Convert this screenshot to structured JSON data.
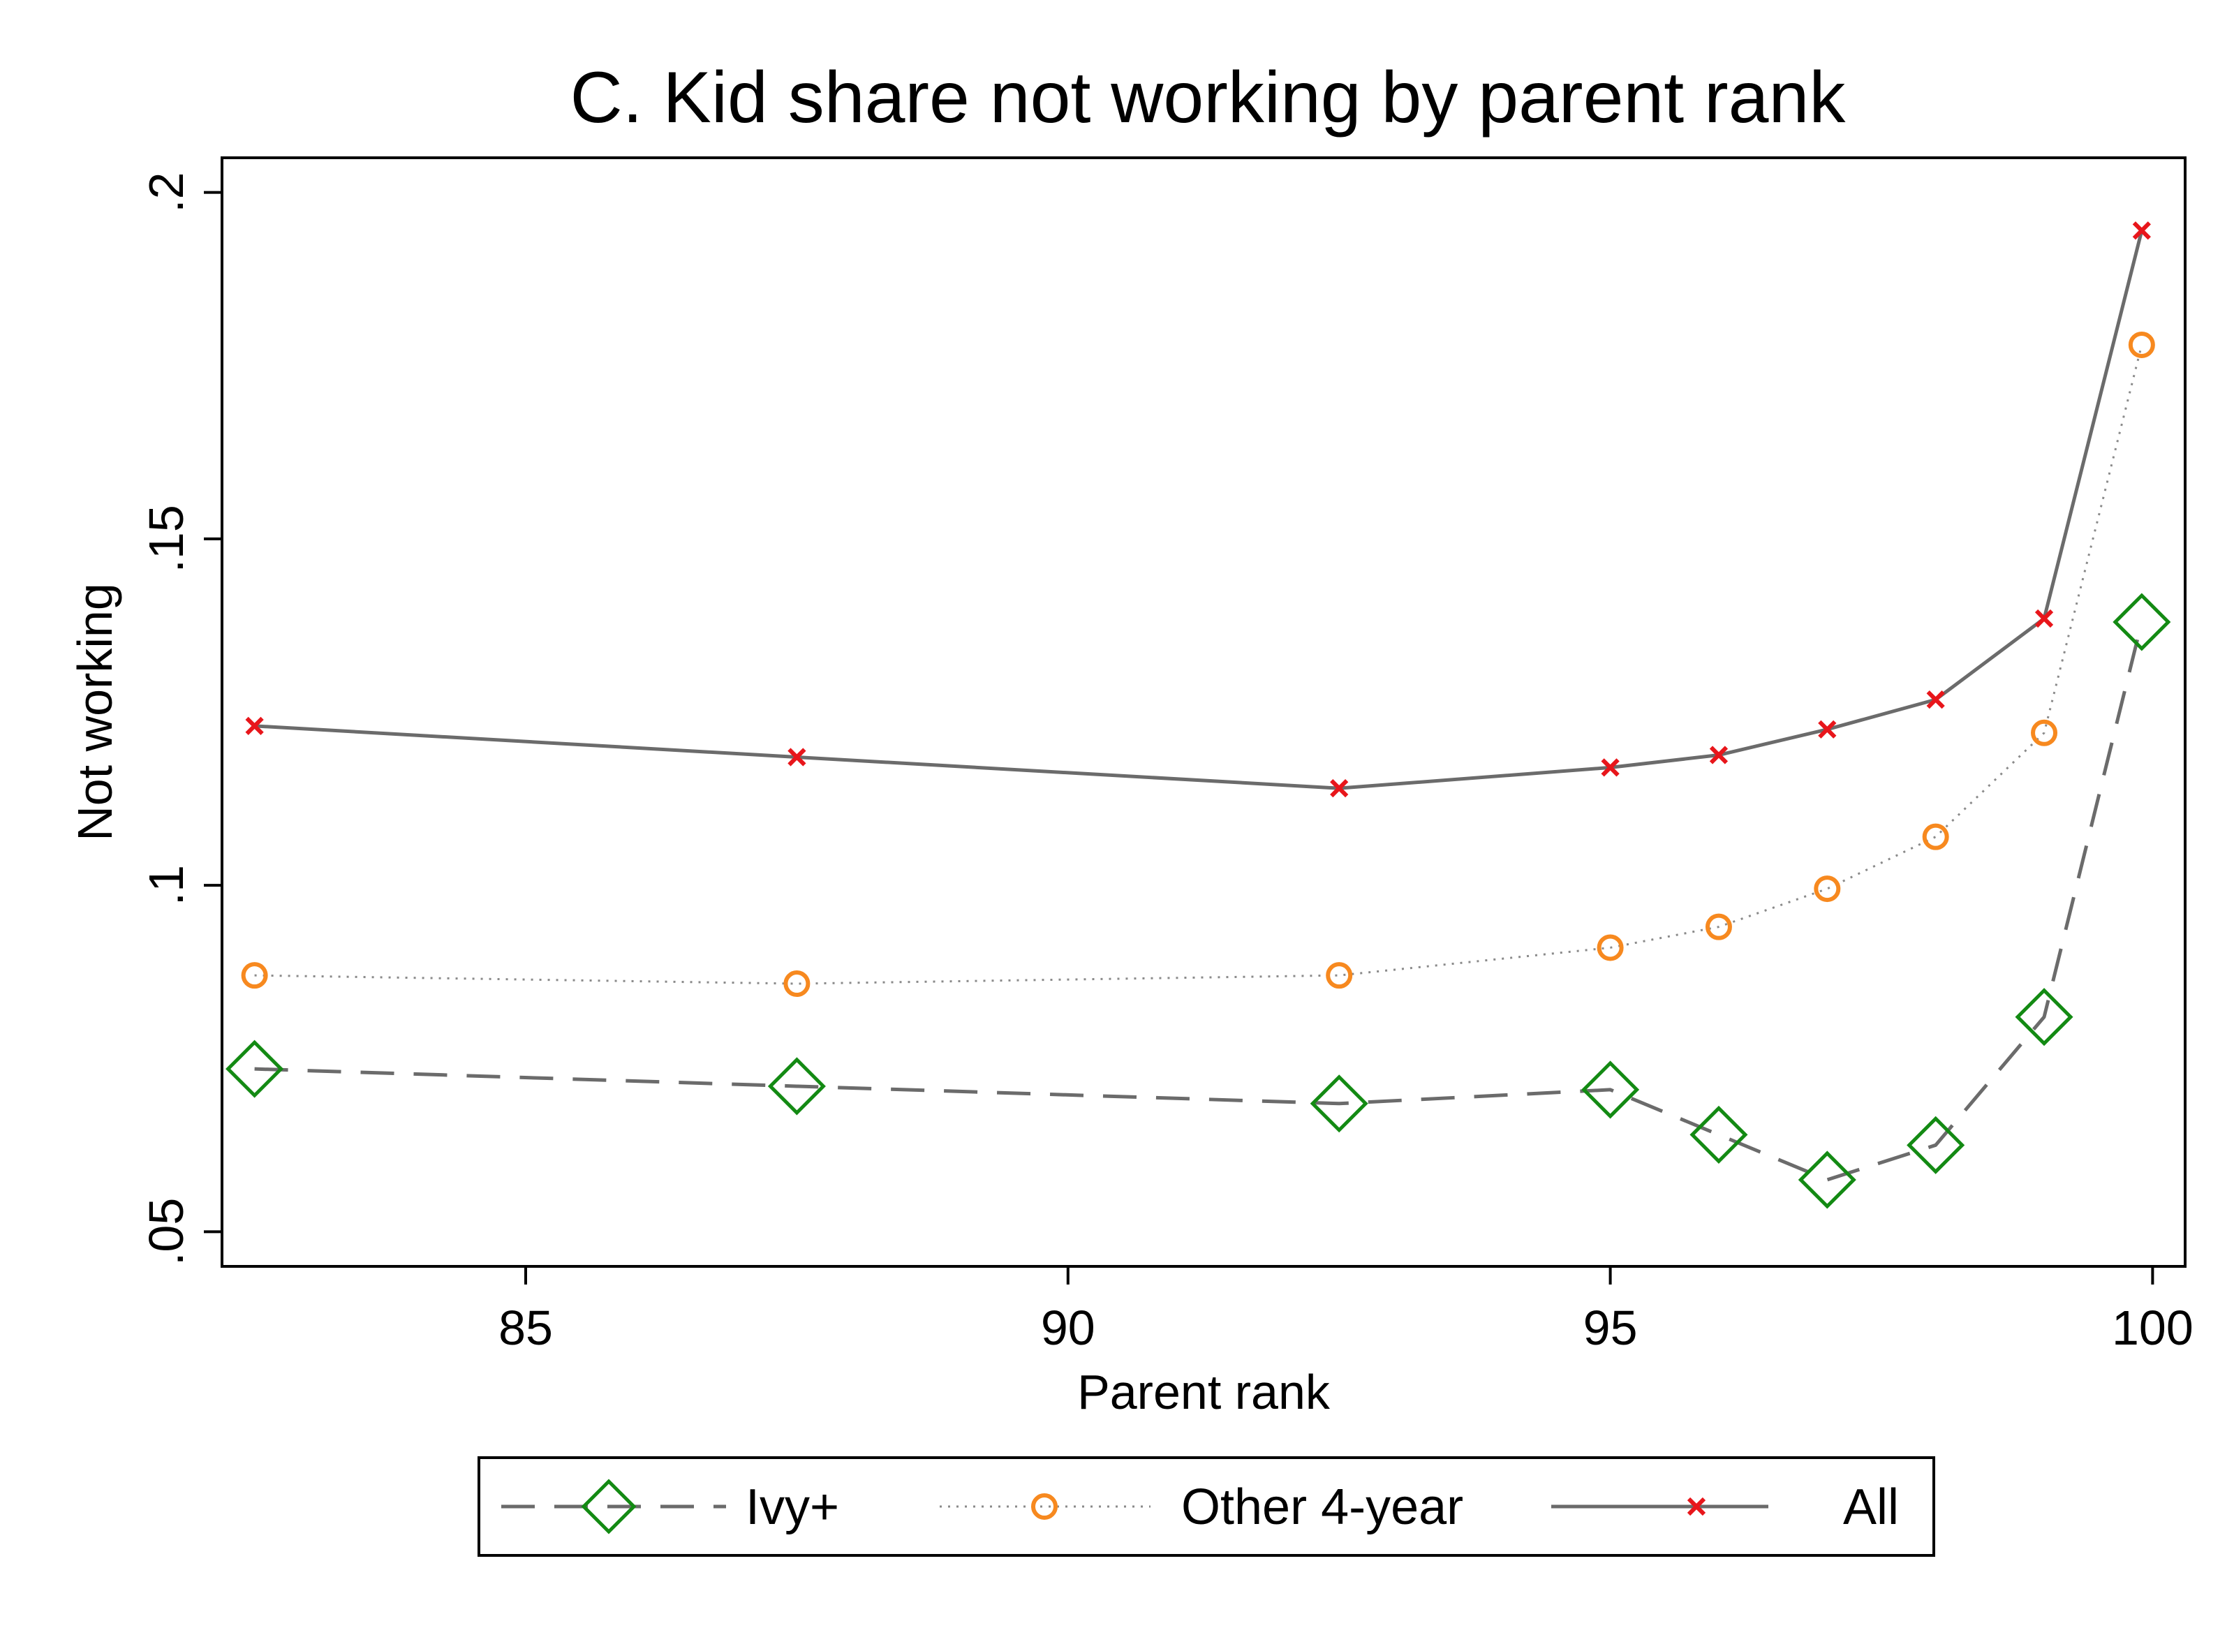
{
  "chart_data": {
    "type": "line",
    "title": "C. Kid share not working by parent rank",
    "xlabel": "Parent rank",
    "ylabel": "Not working",
    "xlim": [
      82.2,
      100.3
    ],
    "ylim": [
      0.045,
      0.205
    ],
    "x_ticks": [
      85,
      90,
      95,
      100
    ],
    "x_tick_labels": [
      "85",
      "90",
      "95",
      "100"
    ],
    "y_ticks": [
      0.05,
      0.1,
      0.15,
      0.2
    ],
    "y_tick_labels": [
      ".05",
      ".1",
      ".15",
      ".2"
    ],
    "grid": false,
    "legend_position": "bottom",
    "x": [
      82.5,
      87.5,
      92.5,
      95,
      96,
      97,
      98,
      99,
      99.9
    ],
    "series": [
      {
        "name": "Ivy+",
        "line_style": "dashed",
        "marker": "diamond",
        "marker_color": "#138a13",
        "line_color": "#6b6b6b",
        "values": [
          0.0735,
          0.071,
          0.0685,
          0.0705,
          0.064,
          0.0575,
          0.0625,
          0.081,
          0.138
        ]
      },
      {
        "name": "Other 4-year",
        "line_style": "dotted",
        "marker": "circle",
        "marker_color": "#f7891f",
        "line_color": "#8a8a8a",
        "values": [
          0.087,
          0.0858,
          0.087,
          0.091,
          0.094,
          0.0995,
          0.107,
          0.122,
          0.178
        ]
      },
      {
        "name": "All",
        "line_style": "solid",
        "marker": "x",
        "marker_color": "#e8161b",
        "line_color": "#6b6b6b",
        "values": [
          0.123,
          0.1185,
          0.114,
          0.117,
          0.1188,
          0.1225,
          0.1268,
          0.1385,
          0.1945
        ]
      }
    ]
  }
}
